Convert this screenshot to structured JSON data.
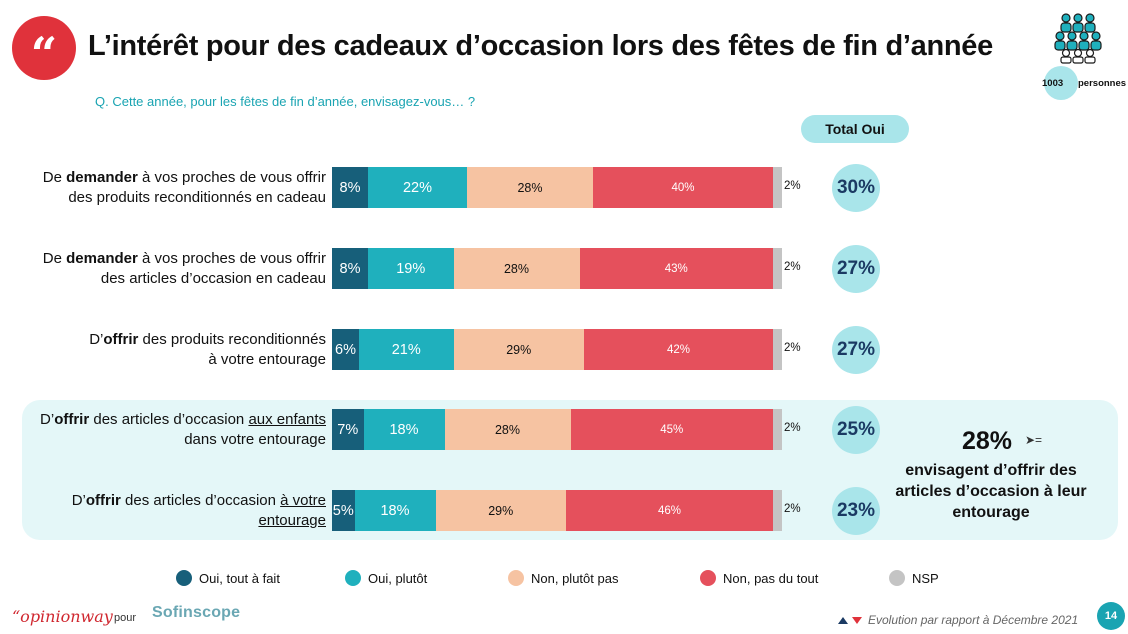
{
  "header": {
    "quote_glyph": "“",
    "title": "L’intérêt pour des cadeaux d’occasion lors des fêtes de fin d’année",
    "sample_count": "1003",
    "sample_label": "personnes",
    "people_icon": "people-group-icon"
  },
  "question": "Q. Cette année, pour les fêtes de fin d’année, envisagez-vous… ?",
  "total_header": "Total Oui",
  "colors": {
    "dark_teal": "#175f7a",
    "teal": "#1fb0bd",
    "salmon": "#f6c3a2",
    "red": "#e5505c",
    "grey": "#c4c4c4",
    "accent_light": "#a9e5ea",
    "brand_red": "#e0323b"
  },
  "rows": [
    {
      "label": [
        {
          "t": "De ",
          "s": ""
        },
        {
          "t": "demander",
          "s": "b"
        },
        {
          "t": " à vos proches de vous offrir",
          "s": ""
        },
        {
          "t": "\n",
          "s": "br"
        },
        {
          "t": "des produits reconditionnés en cadeau",
          "s": ""
        }
      ],
      "total": "30%"
    },
    {
      "label": [
        {
          "t": "De ",
          "s": ""
        },
        {
          "t": "demander",
          "s": "b"
        },
        {
          "t": " à vos proches de vous offrir",
          "s": ""
        },
        {
          "t": "\n",
          "s": "br"
        },
        {
          "t": "des articles d’occasion en cadeau",
          "s": ""
        }
      ],
      "total": "27%"
    },
    {
      "label": [
        {
          "t": "D’",
          "s": ""
        },
        {
          "t": "offrir",
          "s": "b"
        },
        {
          "t": " des produits reconditionnés",
          "s": ""
        },
        {
          "t": "\n",
          "s": "br"
        },
        {
          "t": "à votre entourage",
          "s": ""
        }
      ],
      "total": "27%"
    },
    {
      "label": [
        {
          "t": "D’",
          "s": ""
        },
        {
          "t": "offrir",
          "s": "b"
        },
        {
          "t": " des articles d’occasion ",
          "s": ""
        },
        {
          "t": "aux enfants",
          "s": "u"
        },
        {
          "t": "\n",
          "s": "br"
        },
        {
          "t": "dans votre entourage",
          "s": ""
        }
      ],
      "total": "25%"
    },
    {
      "label": [
        {
          "t": "D’",
          "s": ""
        },
        {
          "t": "offrir",
          "s": "b"
        },
        {
          "t": " des articles d’occasion ",
          "s": ""
        },
        {
          "t": "à votre",
          "s": "u"
        },
        {
          "t": "\n",
          "s": "br"
        },
        {
          "t": "entourage",
          "s": "u"
        }
      ],
      "total": "23%"
    }
  ],
  "chart_data": {
    "type": "bar",
    "orientation": "horizontal-stacked-100",
    "categories": [
      "De demander à vos proches de vous offrir des produits reconditionnés en cadeau",
      "De demander à vos proches de vous offrir des articles d’occasion en cadeau",
      "D’offrir des produits reconditionnés à votre entourage",
      "D’offrir des articles d’occasion aux enfants dans votre entourage",
      "D’offrir des articles d’occasion à votre entourage"
    ],
    "series": [
      {
        "name": "Oui, tout à fait",
        "values": [
          8,
          8,
          6,
          7,
          5
        ],
        "labels": [
          "8%",
          "8%",
          "6%",
          "7%",
          "5%"
        ],
        "color": "#175f7a"
      },
      {
        "name": "Oui, plutôt",
        "values": [
          22,
          19,
          21,
          18,
          18
        ],
        "labels": [
          "22%",
          "19%",
          "21%",
          "18%",
          "18%"
        ],
        "color": "#1fb0bd"
      },
      {
        "name": "Non, plutôt pas",
        "values": [
          28,
          28,
          29,
          28,
          29
        ],
        "labels": [
          "28%",
          "28%",
          "29%",
          "28%",
          "29%"
        ],
        "color": "#f6c3a2"
      },
      {
        "name": "Non, pas du tout",
        "values": [
          40,
          43,
          42,
          45,
          46
        ],
        "labels": [
          "40%",
          "43%",
          "42%",
          "45%",
          "46%"
        ],
        "color": "#e5505c"
      },
      {
        "name": "NSP",
        "values": [
          2,
          2,
          2,
          2,
          2
        ],
        "labels": [
          "2%",
          "2%",
          "2%",
          "2%",
          "2%"
        ],
        "color": "#c4c4c4"
      }
    ],
    "total_oui": [
      30,
      27,
      27,
      25,
      23
    ],
    "legend_position": "bottom"
  },
  "callout": {
    "percent": "28%",
    "trend_mark": "➤=",
    "text": "envisagent d’offrir des articles d’occasion à leur entourage"
  },
  "legend": [
    "Oui, tout à fait",
    "Oui, plutôt",
    "Non, plutôt pas",
    "Non, pas du tout",
    "NSP"
  ],
  "footer": {
    "opinionway": "“opinionway",
    "pour": "pour",
    "sofinscope": "Sofinscope",
    "evolution": "Evolution par rapport à Décembre 2021",
    "page": "14"
  }
}
